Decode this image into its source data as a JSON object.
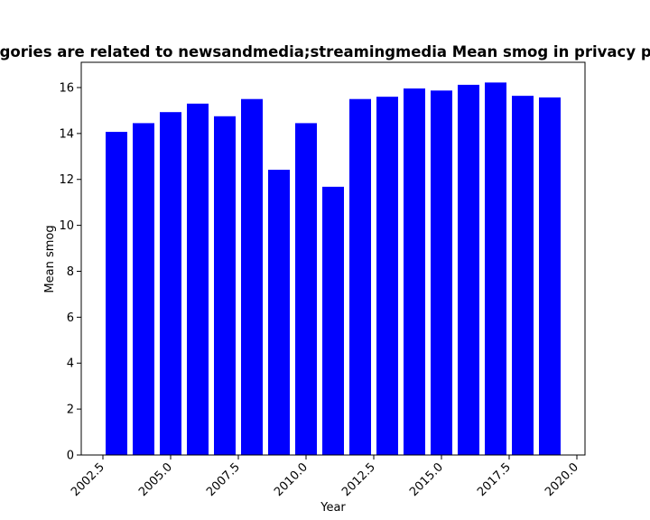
{
  "chart_data": {
    "type": "bar",
    "title": "Categories are related to newsandmedia;streamingmedia Mean smog in privacy policies",
    "xlabel": "Year",
    "ylabel": "Mean smog",
    "x": [
      2003,
      2004,
      2005,
      2006,
      2007,
      2008,
      2009,
      2010,
      2011,
      2012,
      2013,
      2014,
      2015,
      2016,
      2017,
      2018,
      2019
    ],
    "values": [
      14.07,
      14.45,
      14.93,
      15.3,
      14.75,
      15.5,
      12.42,
      14.45,
      11.68,
      15.5,
      15.6,
      15.96,
      15.87,
      16.12,
      16.22,
      15.64,
      15.57
    ],
    "xlim": [
      2001.7,
      2020.3
    ],
    "ylim": [
      0,
      17.1
    ],
    "xticks": [
      2002.5,
      2005.0,
      2007.5,
      2010.0,
      2012.5,
      2015.0,
      2017.5,
      2020.0
    ],
    "xtick_labels": [
      "2002.5",
      "2005.0",
      "2007.5",
      "2010.0",
      "2012.5",
      "2015.0",
      "2017.5",
      "2020.0"
    ],
    "yticks": [
      0,
      2,
      4,
      6,
      8,
      10,
      12,
      14,
      16
    ],
    "ytick_labels": [
      "0",
      "2",
      "4",
      "6",
      "8",
      "10",
      "12",
      "14",
      "16"
    ],
    "bar_color": "#0000ff",
    "grid": false
  }
}
